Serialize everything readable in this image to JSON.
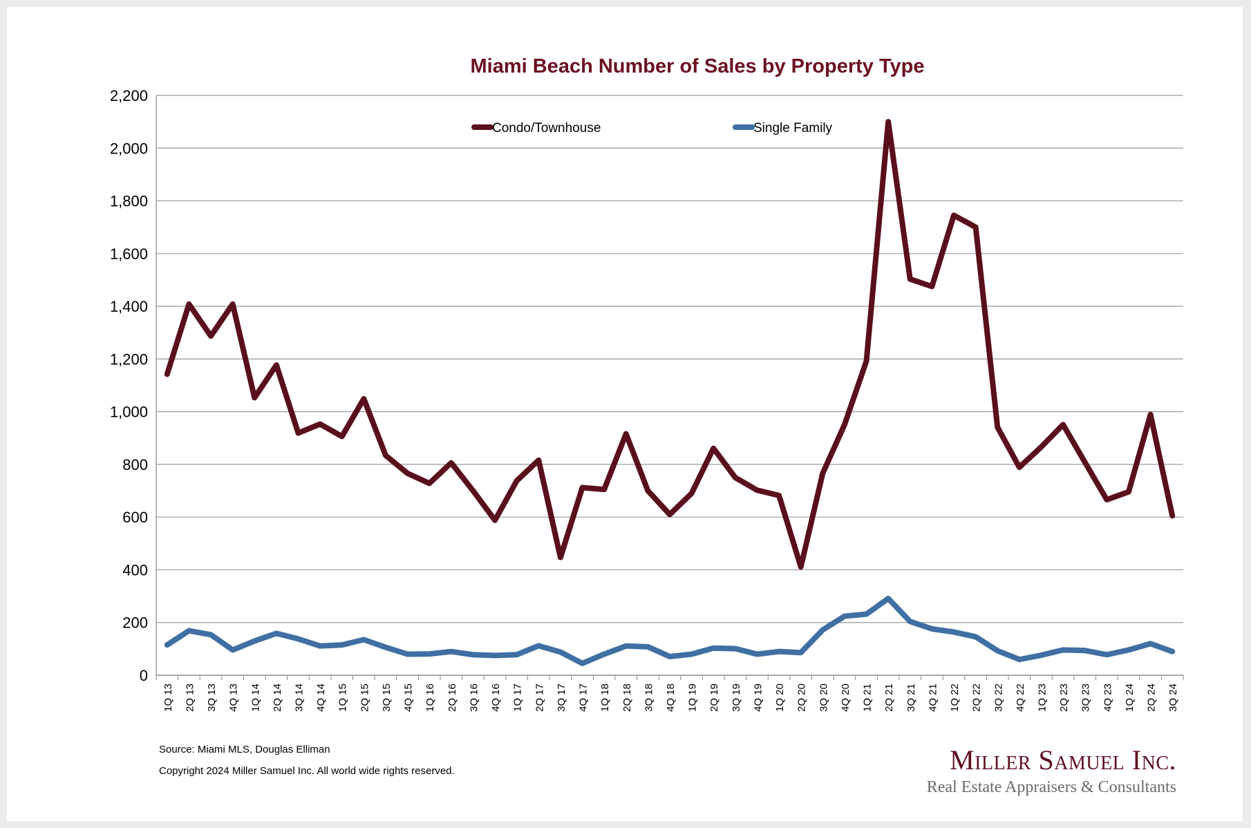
{
  "chart_data": {
    "type": "line",
    "title": "Miami Beach Number of Sales by Property Type",
    "xlabel": "",
    "ylabel": "",
    "ylim": [
      0,
      2200
    ],
    "yticks": [
      "0",
      "200",
      "400",
      "600",
      "800",
      "1,000",
      "1,200",
      "1,400",
      "1,600",
      "1,800",
      "2,000",
      "2,200"
    ],
    "ytick_values": [
      0,
      200,
      400,
      600,
      800,
      1000,
      1200,
      1400,
      1600,
      1800,
      2000,
      2200
    ],
    "grid": true,
    "legend_position": "top-center",
    "categories": [
      "1Q 13",
      "2Q 13",
      "3Q 13",
      "4Q 13",
      "1Q 14",
      "2Q 14",
      "3Q 14",
      "4Q 14",
      "1Q 15",
      "2Q 15",
      "3Q 15",
      "4Q 15",
      "1Q 16",
      "2Q 16",
      "3Q 16",
      "4Q 16",
      "1Q 17",
      "2Q 17",
      "3Q 17",
      "4Q 17",
      "1Q 18",
      "2Q 18",
      "3Q 18",
      "4Q 18",
      "1Q 19",
      "2Q 19",
      "3Q 19",
      "4Q 19",
      "1Q 20",
      "2Q 20",
      "3Q 20",
      "4Q 20",
      "1Q 21",
      "2Q 21",
      "3Q 21",
      "4Q 21",
      "1Q 22",
      "2Q 22",
      "3Q 22",
      "4Q 22",
      "1Q 23",
      "2Q 23",
      "3Q 23",
      "4Q 23",
      "1Q 24",
      "2Q 24",
      "3Q 24"
    ],
    "series": [
      {
        "name": "Condo/Townhouse",
        "color": "#5a0f1c",
        "values": [
          1142,
          1408,
          1287,
          1408,
          1053,
          1177,
          919,
          953,
          906,
          1049,
          834,
          766,
          728,
          806,
          700,
          588,
          738,
          816,
          447,
          712,
          705,
          916,
          700,
          610,
          690,
          861,
          750,
          702,
          682,
          411,
          766,
          951,
          1192,
          2100,
          1503,
          1475,
          1745,
          1700,
          941,
          789,
          866,
          951,
          808,
          666,
          696,
          989,
          605
        ]
      },
      {
        "name": "Single Family",
        "color": "#3f6fa3",
        "values": [
          115,
          169,
          154,
          96,
          130,
          159,
          138,
          111,
          115,
          135,
          106,
          80,
          81,
          90,
          78,
          75,
          78,
          112,
          88,
          45,
          80,
          111,
          108,
          71,
          80,
          103,
          101,
          80,
          90,
          86,
          172,
          224,
          232,
          291,
          204,
          176,
          164,
          146,
          93,
          60,
          76,
          96,
          94,
          78,
          96,
          120,
          90
        ]
      }
    ]
  },
  "footer": {
    "source": "Source: Miami MLS, Douglas Elliman",
    "copyright": "Copyright 2024 Miller Samuel Inc.  All world wide rights reserved."
  },
  "logo": {
    "name": "Miller Samuel Inc.",
    "tagline": "Real Estate Appraisers & Consultants"
  },
  "colors": {
    "title": "#6b1020",
    "grid": "#9a9a9a"
  }
}
